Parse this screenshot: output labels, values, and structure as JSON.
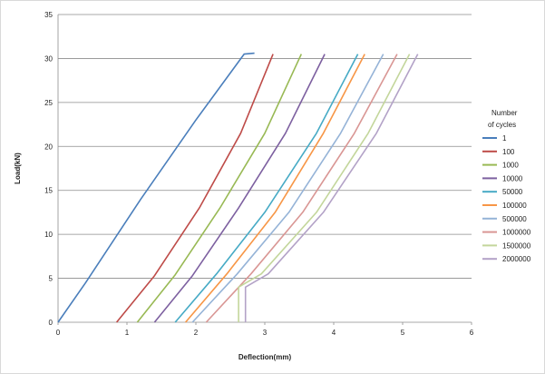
{
  "chart_data": {
    "type": "line",
    "title": "",
    "xlabel": "Deflection(mm)",
    "ylabel": "Load(kN)",
    "xlim": [
      0,
      6
    ],
    "ylim": [
      0,
      35
    ],
    "xticks": [
      "0",
      "1",
      "2",
      "3",
      "4",
      "5",
      "6"
    ],
    "yticks": [
      "0",
      "5",
      "10",
      "15",
      "20",
      "25",
      "30",
      "35"
    ],
    "grid": "horizontal",
    "legend_title": "Number of cycles",
    "legend_title_lines": [
      "Number",
      "of cycles"
    ],
    "legend_position": "right",
    "series": [
      {
        "name": "1",
        "color": "#4a7ebb",
        "points": [
          [
            0.0,
            0
          ],
          [
            0.4,
            4.5
          ],
          [
            1.2,
            14
          ],
          [
            2.0,
            23
          ],
          [
            2.7,
            30.5
          ],
          [
            2.85,
            30.6
          ]
        ]
      },
      {
        "name": "100",
        "color": "#be4b48",
        "points": [
          [
            0.85,
            0
          ],
          [
            1.4,
            5.3
          ],
          [
            2.05,
            13
          ],
          [
            2.65,
            21.5
          ],
          [
            3.12,
            30.5
          ]
        ]
      },
      {
        "name": "1000",
        "color": "#98b954",
        "points": [
          [
            1.15,
            0
          ],
          [
            1.7,
            5.4
          ],
          [
            2.35,
            13
          ],
          [
            3.0,
            21.5
          ],
          [
            3.53,
            30.5
          ]
        ]
      },
      {
        "name": "10000",
        "color": "#7d60a0",
        "points": [
          [
            1.4,
            0
          ],
          [
            1.95,
            5.3
          ],
          [
            2.62,
            13
          ],
          [
            3.3,
            21.5
          ],
          [
            3.87,
            30.5
          ]
        ]
      },
      {
        "name": "50000",
        "color": "#46aac5",
        "points": [
          [
            1.7,
            0
          ],
          [
            2.3,
            5.5
          ],
          [
            3.0,
            12.5
          ],
          [
            3.75,
            21.5
          ],
          [
            4.35,
            30.5
          ]
        ]
      },
      {
        "name": "100000",
        "color": "#f79646",
        "points": [
          [
            1.85,
            0
          ],
          [
            2.45,
            5.5
          ],
          [
            3.15,
            12.5
          ],
          [
            3.85,
            21.5
          ],
          [
            4.45,
            30.5
          ]
        ]
      },
      {
        "name": "500000",
        "color": "#95b3d7",
        "points": [
          [
            1.95,
            0
          ],
          [
            2.6,
            5.5
          ],
          [
            3.35,
            12.5
          ],
          [
            4.1,
            21.5
          ],
          [
            4.72,
            30.5
          ]
        ]
      },
      {
        "name": "1000000",
        "color": "#d99694",
        "points": [
          [
            2.15,
            0
          ],
          [
            2.8,
            5.5
          ],
          [
            3.55,
            12.5
          ],
          [
            4.3,
            21.5
          ],
          [
            4.92,
            30.5
          ]
        ]
      },
      {
        "name": "1500000",
        "color": "#c3d69b",
        "points": [
          [
            2.62,
            0
          ],
          [
            2.62,
            4
          ],
          [
            2.95,
            5.5
          ],
          [
            3.75,
            12.5
          ],
          [
            4.5,
            21.5
          ],
          [
            5.1,
            30.5
          ]
        ]
      },
      {
        "name": "2000000",
        "color": "#b3a2c7",
        "points": [
          [
            2.72,
            0
          ],
          [
            2.72,
            4
          ],
          [
            3.05,
            5.5
          ],
          [
            3.85,
            12.5
          ],
          [
            4.62,
            21.5
          ],
          [
            5.22,
            30.5
          ]
        ]
      }
    ]
  }
}
